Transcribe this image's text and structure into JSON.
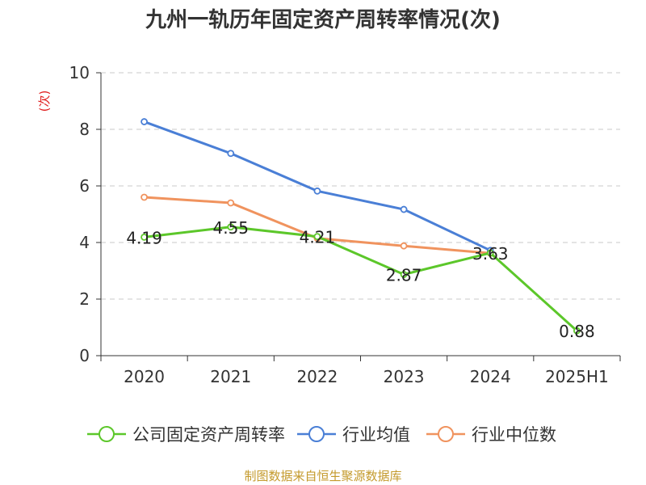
{
  "chart_data": {
    "type": "line",
    "title": "九州一轨历年固定资产周转率情况(次)",
    "ylabel": "(次)",
    "xlabel": "",
    "categories": [
      "2020",
      "2021",
      "2022",
      "2023",
      "2024",
      "2025H1"
    ],
    "ylim": [
      0,
      10
    ],
    "yticks": [
      0,
      2,
      4,
      6,
      8,
      10
    ],
    "grid": true,
    "legend_position": "bottom",
    "series": [
      {
        "name": "公司固定资产周转率",
        "color": "#5cc72a",
        "values": [
          4.19,
          4.55,
          4.21,
          2.87,
          3.63,
          0.88
        ],
        "labels": [
          "4.19",
          "4.55",
          "4.21",
          "2.87",
          "3.63",
          "0.88"
        ]
      },
      {
        "name": "行业均值",
        "color": "#4a7fd6",
        "values": [
          8.27,
          7.15,
          5.82,
          5.17,
          3.72,
          null
        ]
      },
      {
        "name": "行业中位数",
        "color": "#f0935e",
        "values": [
          5.6,
          5.4,
          4.15,
          3.88,
          3.62,
          null
        ]
      }
    ]
  },
  "source": "制图数据来自恒生聚源数据库"
}
